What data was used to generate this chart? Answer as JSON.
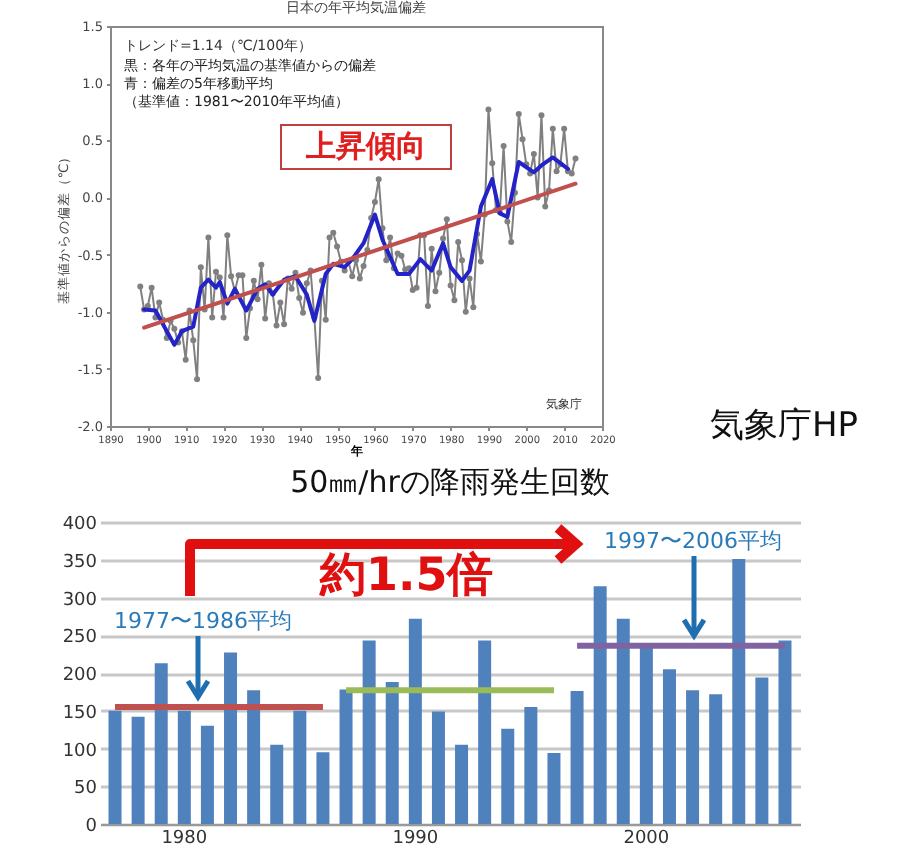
{
  "chart_data": [
    {
      "type": "line",
      "title": "日本の年平均気温偏差",
      "xlabel": "年",
      "ylabel": "基準値からの偏差（℃）",
      "xlim": [
        1890,
        2020
      ],
      "xticks": [
        1890,
        1900,
        1910,
        1920,
        1930,
        1940,
        1950,
        1960,
        1970,
        1980,
        1990,
        2000,
        2010,
        2020
      ],
      "ylim": [
        -2,
        1.5
      ],
      "yticks": [
        {
          "value": -2,
          "label": "-2.0"
        },
        -1.5,
        {
          "value": -1,
          "label": "-1.0"
        },
        -0.5,
        {
          "value": 0,
          "label": "0.0"
        },
        0.5,
        {
          "value": 1,
          "label": "1.0"
        },
        1.5
      ],
      "series": [
        {
          "color": "#808080",
          "marker": "circle",
          "x": [
            1898,
            1899,
            1900,
            1901,
            1902,
            1903,
            1904,
            1905,
            1906,
            1907,
            1908,
            1909,
            1910,
            1911,
            1912,
            1913,
            1914,
            1915,
            1916,
            1917,
            1918,
            1919,
            1920,
            1921,
            1922,
            1923,
            1924,
            1925,
            1926,
            1927,
            1928,
            1929,
            1930,
            1931,
            1932,
            1933,
            1934,
            1935,
            1936,
            1937,
            1938,
            1939,
            1940,
            1941,
            1942,
            1943,
            1944,
            1945,
            1946,
            1947,
            1948,
            1949,
            1950,
            1951,
            1952,
            1953,
            1954,
            1955,
            1956,
            1957,
            1958,
            1959,
            1960,
            1961,
            1962,
            1963,
            1964,
            1965,
            1966,
            1967,
            1968,
            1969,
            1970,
            1971,
            1972,
            1973,
            1974,
            1975,
            1976,
            1977,
            1978,
            1979,
            1980,
            1981,
            1982,
            1983,
            1984,
            1985,
            1986,
            1987,
            1988,
            1989,
            1990,
            1991,
            1992,
            1993,
            1994,
            1995,
            1996,
            1997,
            1998,
            1999,
            2000,
            2001,
            2002,
            2003,
            2004,
            2005,
            2006,
            2007,
            2008,
            2009,
            2010,
            2011,
            2012,
            2013
          ],
          "values": [
            -0.78,
            -0.98,
            -0.95,
            -0.79,
            -1.05,
            -0.92,
            -1.07,
            -1.23,
            -1.08,
            -1.15,
            -1.27,
            -1.17,
            -1.42,
            -0.99,
            -1.25,
            -1.59,
            -0.61,
            -0.98,
            -0.35,
            -1.05,
            -0.65,
            -0.7,
            -1.05,
            -0.33,
            -0.69,
            -0.82,
            -0.68,
            -0.68,
            -1.23,
            -0.97,
            -0.73,
            -0.89,
            -0.59,
            -1.06,
            -0.75,
            -0.84,
            -1.12,
            -0.92,
            -1.11,
            -0.71,
            -0.8,
            -0.66,
            -0.88,
            -1.01,
            -0.75,
            -0.64,
            -1.05,
            -1.58,
            -0.73,
            -1.07,
            -0.35,
            -0.31,
            -0.43,
            -0.56,
            -0.64,
            -0.56,
            -0.69,
            -0.55,
            -0.71,
            -0.6,
            -0.46,
            -0.18,
            -0.04,
            0.16,
            -0.27,
            -0.55,
            -0.35,
            -0.62,
            -0.49,
            -0.51,
            -0.63,
            -0.62,
            -0.81,
            -0.79,
            -0.33,
            -0.33,
            -0.95,
            -0.45,
            -0.82,
            -0.66,
            -0.36,
            -0.19,
            -0.77,
            -0.9,
            -0.39,
            -0.55,
            -1.0,
            -0.71,
            -0.96,
            -0.32,
            -0.56,
            -0.15,
            0.77,
            0.3,
            -0.11,
            -0.13,
            0.45,
            -0.21,
            -0.39,
            0.04,
            0.73,
            0.51,
            0.29,
            0.21,
            0.38,
            0.0,
            0.72,
            -0.08,
            0.06,
            0.6,
            0.23,
            0.29,
            0.6,
            0.23,
            0.21,
            0.34
          ]
        },
        {
          "color": "#2323c8",
          "x": [
            1899,
            1902,
            1907,
            1909,
            1912,
            1914,
            1916,
            1918,
            1919,
            1921,
            1923,
            1926,
            1929,
            1931,
            1933,
            1936,
            1939,
            1942,
            1944,
            1947,
            1949,
            1952,
            1954,
            1957,
            1960,
            1962,
            1966,
            1969,
            1972,
            1975,
            1978,
            1980,
            1983,
            1985,
            1988,
            1991,
            1993,
            1995,
            1998,
            2002,
            2004,
            2007,
            2011
          ],
          "values": [
            -0.98,
            -0.99,
            -1.29,
            -1.17,
            -1.13,
            -0.79,
            -0.72,
            -0.79,
            -0.74,
            -0.93,
            -0.8,
            -0.99,
            -0.8,
            -0.76,
            -0.85,
            -0.72,
            -0.69,
            -0.85,
            -1.08,
            -0.67,
            -0.58,
            -0.61,
            -0.54,
            -0.4,
            -0.15,
            -0.37,
            -0.67,
            -0.67,
            -0.54,
            -0.64,
            -0.4,
            -0.61,
            -0.73,
            -0.64,
            -0.08,
            0.16,
            -0.14,
            -0.17,
            0.31,
            0.22,
            0.28,
            0.35,
            0.25
          ]
        },
        {
          "color": "#c0504d",
          "x": [
            1899,
            2013
          ],
          "values": [
            -1.14,
            0.12
          ]
        }
      ],
      "annotations": [
        "トレンド=1.14（℃/100年）",
        "黒：各年の平均気温の基準値からの偏差",
        "青：偏差の5年移動平均",
        "（基準値：1981〜2010年平均値）",
        "上昇傾向",
        "気象庁",
        "気象庁HP"
      ]
    },
    {
      "type": "bar",
      "title": "50㎜/hrの降雨発生回数",
      "categories": [
        null,
        null,
        null,
        "1980",
        null,
        null,
        null,
        null,
        null,
        null,
        null,
        null,
        null,
        "1990",
        null,
        null,
        null,
        null,
        null,
        null,
        null,
        null,
        null,
        "2000",
        null,
        null,
        null,
        null,
        null,
        null
      ],
      "ylim": [
        0,
        400
      ],
      "yticks": [
        0,
        50,
        100,
        150,
        200,
        250,
        300,
        350,
        400
      ],
      "grid": "y",
      "series": [
        {
          "type": "bar",
          "color": "#4f81bd",
          "values": [
            150,
            142,
            213,
            150,
            130,
            227,
            177,
            105,
            150,
            95,
            178,
            243,
            188,
            272,
            149,
            105,
            243,
            126,
            155,
            94,
            176,
            315,
            272,
            234,
            205,
            177,
            172,
            351,
            194,
            243
          ]
        },
        {
          "type": "line",
          "color": "#c0504d",
          "values": [
            155,
            155,
            155,
            155,
            155,
            155,
            155,
            155,
            155,
            155,
            null,
            null,
            null,
            null,
            null,
            null,
            null,
            null,
            null,
            null,
            null,
            null,
            null,
            null,
            null,
            null,
            null,
            null,
            null,
            null
          ]
        },
        {
          "type": "line",
          "color": "#9bbb59",
          "values": [
            null,
            null,
            null,
            null,
            null,
            null,
            null,
            null,
            null,
            null,
            177,
            177,
            177,
            177,
            177,
            177,
            177,
            177,
            177,
            177,
            null,
            null,
            null,
            null,
            null,
            null,
            null,
            null,
            null,
            null
          ]
        },
        {
          "type": "line",
          "color": "#8064a2",
          "values": [
            null,
            null,
            null,
            null,
            null,
            null,
            null,
            null,
            null,
            null,
            null,
            null,
            null,
            null,
            null,
            null,
            null,
            null,
            null,
            null,
            236,
            236,
            236,
            236,
            236,
            236,
            236,
            236,
            236,
            236
          ]
        }
      ],
      "annotations": [
        "約1.5倍",
        {
          "text": "1977〜1986平均",
          "y": 155
        },
        {
          "text": "1997〜2006平均",
          "y": 236
        }
      ]
    }
  ]
}
